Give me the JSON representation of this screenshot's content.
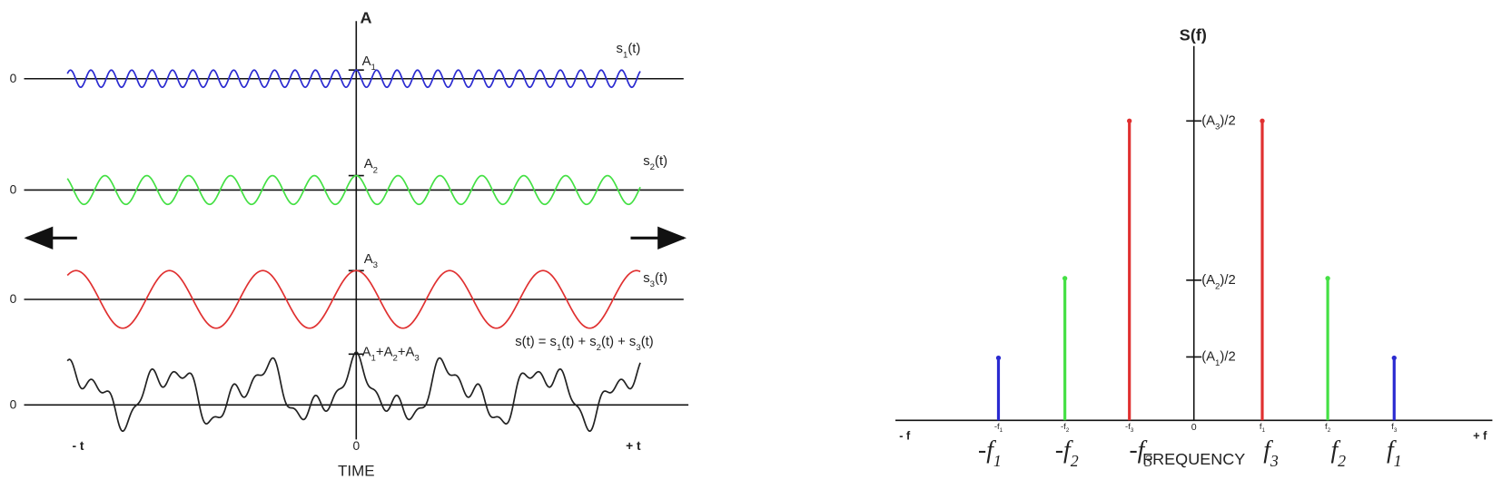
{
  "time_domain": {
    "axis_title": "A",
    "zero_labels": [
      "0",
      "0",
      "0",
      "0"
    ],
    "signals": [
      {
        "name": [
          "s",
          "1",
          "(t)"
        ],
        "peak": [
          "A",
          "1"
        ]
      },
      {
        "name": [
          "s",
          "2",
          "(t)"
        ],
        "peak": [
          "A",
          "2"
        ]
      },
      {
        "name": [
          "s",
          "3",
          "(t)"
        ],
        "peak": [
          "A",
          "3"
        ]
      }
    ],
    "sum": {
      "peak": [
        "A",
        "1",
        "+A",
        "2",
        "+A",
        "3"
      ],
      "equation": [
        "s(t) = s",
        "1",
        "(t) + s",
        "2",
        "(t) + s",
        "3",
        "(t)"
      ]
    },
    "x_labels": [
      "- t",
      "0",
      "+ t"
    ],
    "axis_label": "TIME"
  },
  "frequency_domain": {
    "axis_title": "S(f)",
    "level_labels": [
      [
        "(A",
        "3",
        ")/2"
      ],
      [
        "(A",
        "2",
        ")/2"
      ],
      [
        "(A",
        "1",
        ")/2"
      ]
    ],
    "x_ends": [
      "- f",
      "+ f"
    ],
    "origin": "0",
    "small_labels": [
      [
        "-f",
        "1"
      ],
      [
        "-f",
        "2"
      ],
      [
        "-f",
        "3"
      ],
      [
        "f",
        "1"
      ],
      [
        "f",
        "2"
      ],
      [
        "f",
        "3"
      ]
    ],
    "labels": [
      [
        "-f",
        "1"
      ],
      [
        "-f",
        "2"
      ],
      [
        "-f",
        "3"
      ],
      [
        "f",
        "3"
      ],
      [
        "f",
        "2"
      ],
      [
        "f",
        "1"
      ]
    ],
    "axis_label": "FREQUENCY"
  }
}
